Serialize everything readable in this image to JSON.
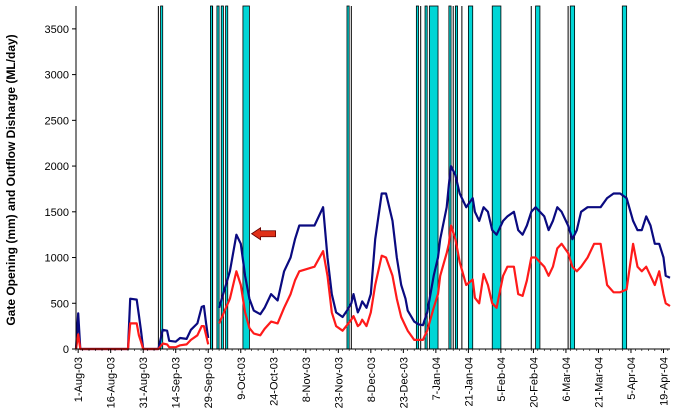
{
  "chart_data": {
    "type": "line",
    "ylabel": "Gate Opening (mm) and Outflow Disharge (ML/day)",
    "xlabel": "",
    "ylim": [
      0,
      3750
    ],
    "yticks": [
      0,
      500,
      1000,
      1500,
      2000,
      2500,
      3000,
      3500
    ],
    "grid": false,
    "x_tick_labels": [
      "1-Aug-03",
      "16-Aug-03",
      "31-Aug-03",
      "14-Sep-03",
      "29-Sep-03",
      "9-Oct-03",
      "24-Oct-03",
      "8-Nov-03",
      "23-Nov-03",
      "8-Dec-03",
      "23-Dec-03",
      "7-Jan-04",
      "21-Jan-04",
      "5-Feb-04",
      "20-Feb-04",
      "6-Mar-04",
      "21-Mar-04",
      "5-Apr-04",
      "19-Apr-04"
    ],
    "x_range": [
      "2003-07-31",
      "2004-04-30"
    ],
    "colors": {
      "outflow": "#0a0a80",
      "gate": "#ff1a1a",
      "gate_event_fill": "#00d6d6",
      "gate_event_edge": "#000000",
      "arrow": "#e03018"
    },
    "annotation": {
      "type": "arrow",
      "direction": "left",
      "date": "2003-10-20",
      "y": 1260
    },
    "series": [
      {
        "key": "outflow",
        "points": [
          [
            "2003-07-31",
            0
          ],
          [
            "2003-08-01",
            390
          ],
          [
            "2003-08-02",
            0
          ],
          [
            "2003-08-24",
            0
          ],
          [
            "2003-08-25",
            550
          ],
          [
            "2003-08-28",
            540
          ],
          [
            "2003-08-29",
            370
          ],
          [
            "2003-08-30",
            200
          ],
          [
            "2003-08-31",
            0
          ],
          [
            "2003-09-07",
            0
          ],
          [
            "2003-09-09",
            210
          ],
          [
            "2003-09-11",
            200
          ],
          [
            "2003-09-12",
            90
          ],
          [
            "2003-09-15",
            80
          ],
          [
            "2003-09-17",
            120
          ],
          [
            "2003-09-20",
            110
          ],
          [
            "2003-09-22",
            210
          ],
          [
            "2003-09-25",
            280
          ],
          [
            "2003-09-27",
            460
          ],
          [
            "2003-09-28",
            470
          ],
          [
            "2003-09-29",
            280
          ],
          [
            "2003-09-30",
            120
          ],
          [
            "2003-10-04",
            null
          ],
          [
            "2003-10-05",
            450
          ],
          [
            "2003-10-10",
            850
          ],
          [
            "2003-10-13",
            1250
          ],
          [
            "2003-10-15",
            1150
          ],
          [
            "2003-10-17",
            800
          ],
          [
            "2003-10-19",
            550
          ],
          [
            "2003-10-21",
            420
          ],
          [
            "2003-10-24",
            380
          ],
          [
            "2003-10-26",
            450
          ],
          [
            "2003-10-29",
            600
          ],
          [
            "2003-11-01",
            530
          ],
          [
            "2003-11-04",
            850
          ],
          [
            "2003-11-07",
            1000
          ],
          [
            "2003-11-09",
            1200
          ],
          [
            "2003-11-11",
            1350
          ],
          [
            "2003-11-18",
            1350
          ],
          [
            "2003-11-22",
            1550
          ],
          [
            "2003-11-24",
            1000
          ],
          [
            "2003-11-26",
            600
          ],
          [
            "2003-11-28",
            400
          ],
          [
            "2003-12-01",
            350
          ],
          [
            "2003-12-03",
            420
          ],
          [
            "2003-12-05",
            500
          ],
          [
            "2003-12-06",
            600
          ],
          [
            "2003-12-08",
            400
          ],
          [
            "2003-12-09",
            450
          ],
          [
            "2003-12-10",
            520
          ],
          [
            "2003-12-12",
            450
          ],
          [
            "2003-12-14",
            600
          ],
          [
            "2003-12-16",
            1200
          ],
          [
            "2003-12-19",
            1700
          ],
          [
            "2003-12-21",
            1700
          ],
          [
            "2003-12-24",
            1400
          ],
          [
            "2003-12-26",
            1000
          ],
          [
            "2003-12-28",
            700
          ],
          [
            "2003-12-30",
            550
          ],
          [
            "2003-12-31",
            420
          ],
          [
            "2004-01-03",
            300
          ],
          [
            "2004-01-05",
            270
          ],
          [
            "2004-01-07",
            260
          ],
          [
            "2004-01-09",
            400
          ],
          [
            "2004-01-12",
            800
          ],
          [
            "2004-01-14",
            1000
          ],
          [
            "2004-01-15",
            1200
          ],
          [
            "2004-01-18",
            1550
          ],
          [
            "2004-01-19",
            1800
          ],
          [
            "2004-01-20",
            2000
          ],
          [
            "2004-01-22",
            1900
          ],
          [
            "2004-01-24",
            1700
          ],
          [
            "2004-01-27",
            1550
          ],
          [
            "2004-01-30",
            1650
          ],
          [
            "2004-01-31",
            1500
          ],
          [
            "2004-02-02",
            1400
          ],
          [
            "2004-02-04",
            1550
          ],
          [
            "2004-02-06",
            1500
          ],
          [
            "2004-02-08",
            1300
          ],
          [
            "2004-02-10",
            1250
          ],
          [
            "2004-02-13",
            1400
          ],
          [
            "2004-02-15",
            1450
          ],
          [
            "2004-02-18",
            1500
          ],
          [
            "2004-02-20",
            1300
          ],
          [
            "2004-02-22",
            1250
          ],
          [
            "2004-02-24",
            1350
          ],
          [
            "2004-02-26",
            1500
          ],
          [
            "2004-02-28",
            1550
          ],
          [
            "2004-03-01",
            1500
          ],
          [
            "2004-03-03",
            1450
          ],
          [
            "2004-03-05",
            1300
          ],
          [
            "2004-03-07",
            1400
          ],
          [
            "2004-03-09",
            1550
          ],
          [
            "2004-03-11",
            1500
          ],
          [
            "2004-03-14",
            1350
          ],
          [
            "2004-03-16",
            1200
          ],
          [
            "2004-03-18",
            1300
          ],
          [
            "2004-03-20",
            1500
          ],
          [
            "2004-03-23",
            1550
          ],
          [
            "2004-03-26",
            1550
          ],
          [
            "2004-03-29",
            1550
          ],
          [
            "2004-04-01",
            1650
          ],
          [
            "2004-04-04",
            1700
          ],
          [
            "2004-04-07",
            1700
          ],
          [
            "2004-04-10",
            1650
          ],
          [
            "2004-04-13",
            1400
          ],
          [
            "2004-04-15",
            1300
          ],
          [
            "2004-04-17",
            1300
          ],
          [
            "2004-04-19",
            1450
          ],
          [
            "2004-04-21",
            1350
          ],
          [
            "2004-04-23",
            1150
          ],
          [
            "2004-04-25",
            1150
          ],
          [
            "2004-04-27",
            1000
          ],
          [
            "2004-04-28",
            800
          ],
          [
            "2004-04-30",
            780
          ]
        ]
      },
      {
        "key": "gate",
        "points": [
          [
            "2003-07-31",
            0
          ],
          [
            "2003-08-01",
            160
          ],
          [
            "2003-08-02",
            0
          ],
          [
            "2003-08-24",
            0
          ],
          [
            "2003-08-25",
            280
          ],
          [
            "2003-08-28",
            280
          ],
          [
            "2003-08-29",
            150
          ],
          [
            "2003-08-30",
            80
          ],
          [
            "2003-08-31",
            0
          ],
          [
            "2003-09-07",
            0
          ],
          [
            "2003-09-09",
            60
          ],
          [
            "2003-09-11",
            50
          ],
          [
            "2003-09-12",
            20
          ],
          [
            "2003-09-15",
            20
          ],
          [
            "2003-09-17",
            40
          ],
          [
            "2003-09-20",
            50
          ],
          [
            "2003-09-22",
            100
          ],
          [
            "2003-09-25",
            150
          ],
          [
            "2003-09-27",
            250
          ],
          [
            "2003-09-28",
            250
          ],
          [
            "2003-09-29",
            150
          ],
          [
            "2003-09-30",
            50
          ],
          [
            "2003-10-04",
            null
          ],
          [
            "2003-10-05",
            280
          ],
          [
            "2003-10-10",
            550
          ],
          [
            "2003-10-13",
            850
          ],
          [
            "2003-10-15",
            700
          ],
          [
            "2003-10-17",
            400
          ],
          [
            "2003-10-19",
            230
          ],
          [
            "2003-10-21",
            170
          ],
          [
            "2003-10-24",
            150
          ],
          [
            "2003-10-26",
            220
          ],
          [
            "2003-10-29",
            300
          ],
          [
            "2003-11-01",
            280
          ],
          [
            "2003-11-04",
            450
          ],
          [
            "2003-11-07",
            600
          ],
          [
            "2003-11-09",
            750
          ],
          [
            "2003-11-11",
            850
          ],
          [
            "2003-11-18",
            900
          ],
          [
            "2003-11-22",
            1070
          ],
          [
            "2003-11-24",
            800
          ],
          [
            "2003-11-26",
            400
          ],
          [
            "2003-11-28",
            250
          ],
          [
            "2003-12-01",
            200
          ],
          [
            "2003-12-03",
            260
          ],
          [
            "2003-12-05",
            320
          ],
          [
            "2003-12-06",
            360
          ],
          [
            "2003-12-08",
            250
          ],
          [
            "2003-12-09",
            270
          ],
          [
            "2003-12-10",
            320
          ],
          [
            "2003-12-12",
            250
          ],
          [
            "2003-12-14",
            400
          ],
          [
            "2003-12-16",
            700
          ],
          [
            "2003-12-19",
            1020
          ],
          [
            "2003-12-21",
            1000
          ],
          [
            "2003-12-24",
            800
          ],
          [
            "2003-12-26",
            550
          ],
          [
            "2003-12-28",
            350
          ],
          [
            "2003-12-30",
            250
          ],
          [
            "2003-12-31",
            200
          ],
          [
            "2004-01-03",
            100
          ],
          [
            "2004-01-05",
            100
          ],
          [
            "2004-01-07",
            100
          ],
          [
            "2004-01-09",
            200
          ],
          [
            "2004-01-12",
            450
          ],
          [
            "2004-01-14",
            600
          ],
          [
            "2004-01-15",
            800
          ],
          [
            "2004-01-18",
            1050
          ],
          [
            "2004-01-19",
            1150
          ],
          [
            "2004-01-20",
            1350
          ],
          [
            "2004-01-22",
            1200
          ],
          [
            "2004-01-24",
            950
          ],
          [
            "2004-01-27",
            700
          ],
          [
            "2004-01-30",
            760
          ],
          [
            "2004-01-31",
            560
          ],
          [
            "2004-02-02",
            500
          ],
          [
            "2004-02-04",
            820
          ],
          [
            "2004-02-06",
            700
          ],
          [
            "2004-02-08",
            500
          ],
          [
            "2004-02-10",
            450
          ],
          [
            "2004-02-13",
            800
          ],
          [
            "2004-02-15",
            900
          ],
          [
            "2004-02-18",
            900
          ],
          [
            "2004-02-20",
            600
          ],
          [
            "2004-02-22",
            580
          ],
          [
            "2004-02-24",
            750
          ],
          [
            "2004-02-26",
            1000
          ],
          [
            "2004-02-28",
            1000
          ],
          [
            "2004-03-01",
            950
          ],
          [
            "2004-03-03",
            900
          ],
          [
            "2004-03-05",
            800
          ],
          [
            "2004-03-07",
            900
          ],
          [
            "2004-03-09",
            1100
          ],
          [
            "2004-03-11",
            1150
          ],
          [
            "2004-03-14",
            1050
          ],
          [
            "2004-03-16",
            900
          ],
          [
            "2004-03-18",
            850
          ],
          [
            "2004-03-20",
            900
          ],
          [
            "2004-03-23",
            1000
          ],
          [
            "2004-03-26",
            1150
          ],
          [
            "2004-03-29",
            1150
          ],
          [
            "2004-04-01",
            700
          ],
          [
            "2004-04-04",
            620
          ],
          [
            "2004-04-07",
            620
          ],
          [
            "2004-04-10",
            650
          ],
          [
            "2004-04-13",
            1150
          ],
          [
            "2004-04-15",
            900
          ],
          [
            "2004-04-17",
            850
          ],
          [
            "2004-04-19",
            900
          ],
          [
            "2004-04-21",
            800
          ],
          [
            "2004-04-23",
            700
          ],
          [
            "2004-04-25",
            850
          ],
          [
            "2004-04-27",
            600
          ],
          [
            "2004-04-28",
            500
          ],
          [
            "2004-04-30",
            470
          ]
        ]
      }
    ],
    "gate_events": [
      [
        "2003-09-08",
        "2003-09-09"
      ],
      [
        "2003-10-01",
        "2003-10-02"
      ],
      [
        "2003-10-04",
        "2003-10-05"
      ],
      [
        "2003-10-06",
        "2003-10-07"
      ],
      [
        "2003-10-08",
        "2003-10-09"
      ],
      [
        "2003-10-16",
        "2003-10-19"
      ],
      [
        "2003-12-03",
        "2003-12-04"
      ],
      [
        "2004-01-04",
        "2004-01-05"
      ],
      [
        "2004-01-08",
        "2004-01-09"
      ],
      [
        "2004-01-10",
        "2004-01-14"
      ],
      [
        "2004-01-19",
        "2004-01-20"
      ],
      [
        "2004-01-22",
        "2004-01-23"
      ],
      [
        "2004-01-28",
        "2004-01-30"
      ],
      [
        "2004-02-08",
        "2004-02-12"
      ],
      [
        "2004-02-28",
        "2004-03-01"
      ],
      [
        "2004-03-15",
        "2004-03-17"
      ],
      [
        "2004-04-08",
        "2004-04-10"
      ]
    ],
    "thin_markers": [
      "2003-09-07",
      "2003-10-02",
      "2003-12-05",
      "2004-01-06",
      "2004-01-21",
      "2004-01-25",
      "2004-02-26",
      "2004-03-14"
    ]
  }
}
